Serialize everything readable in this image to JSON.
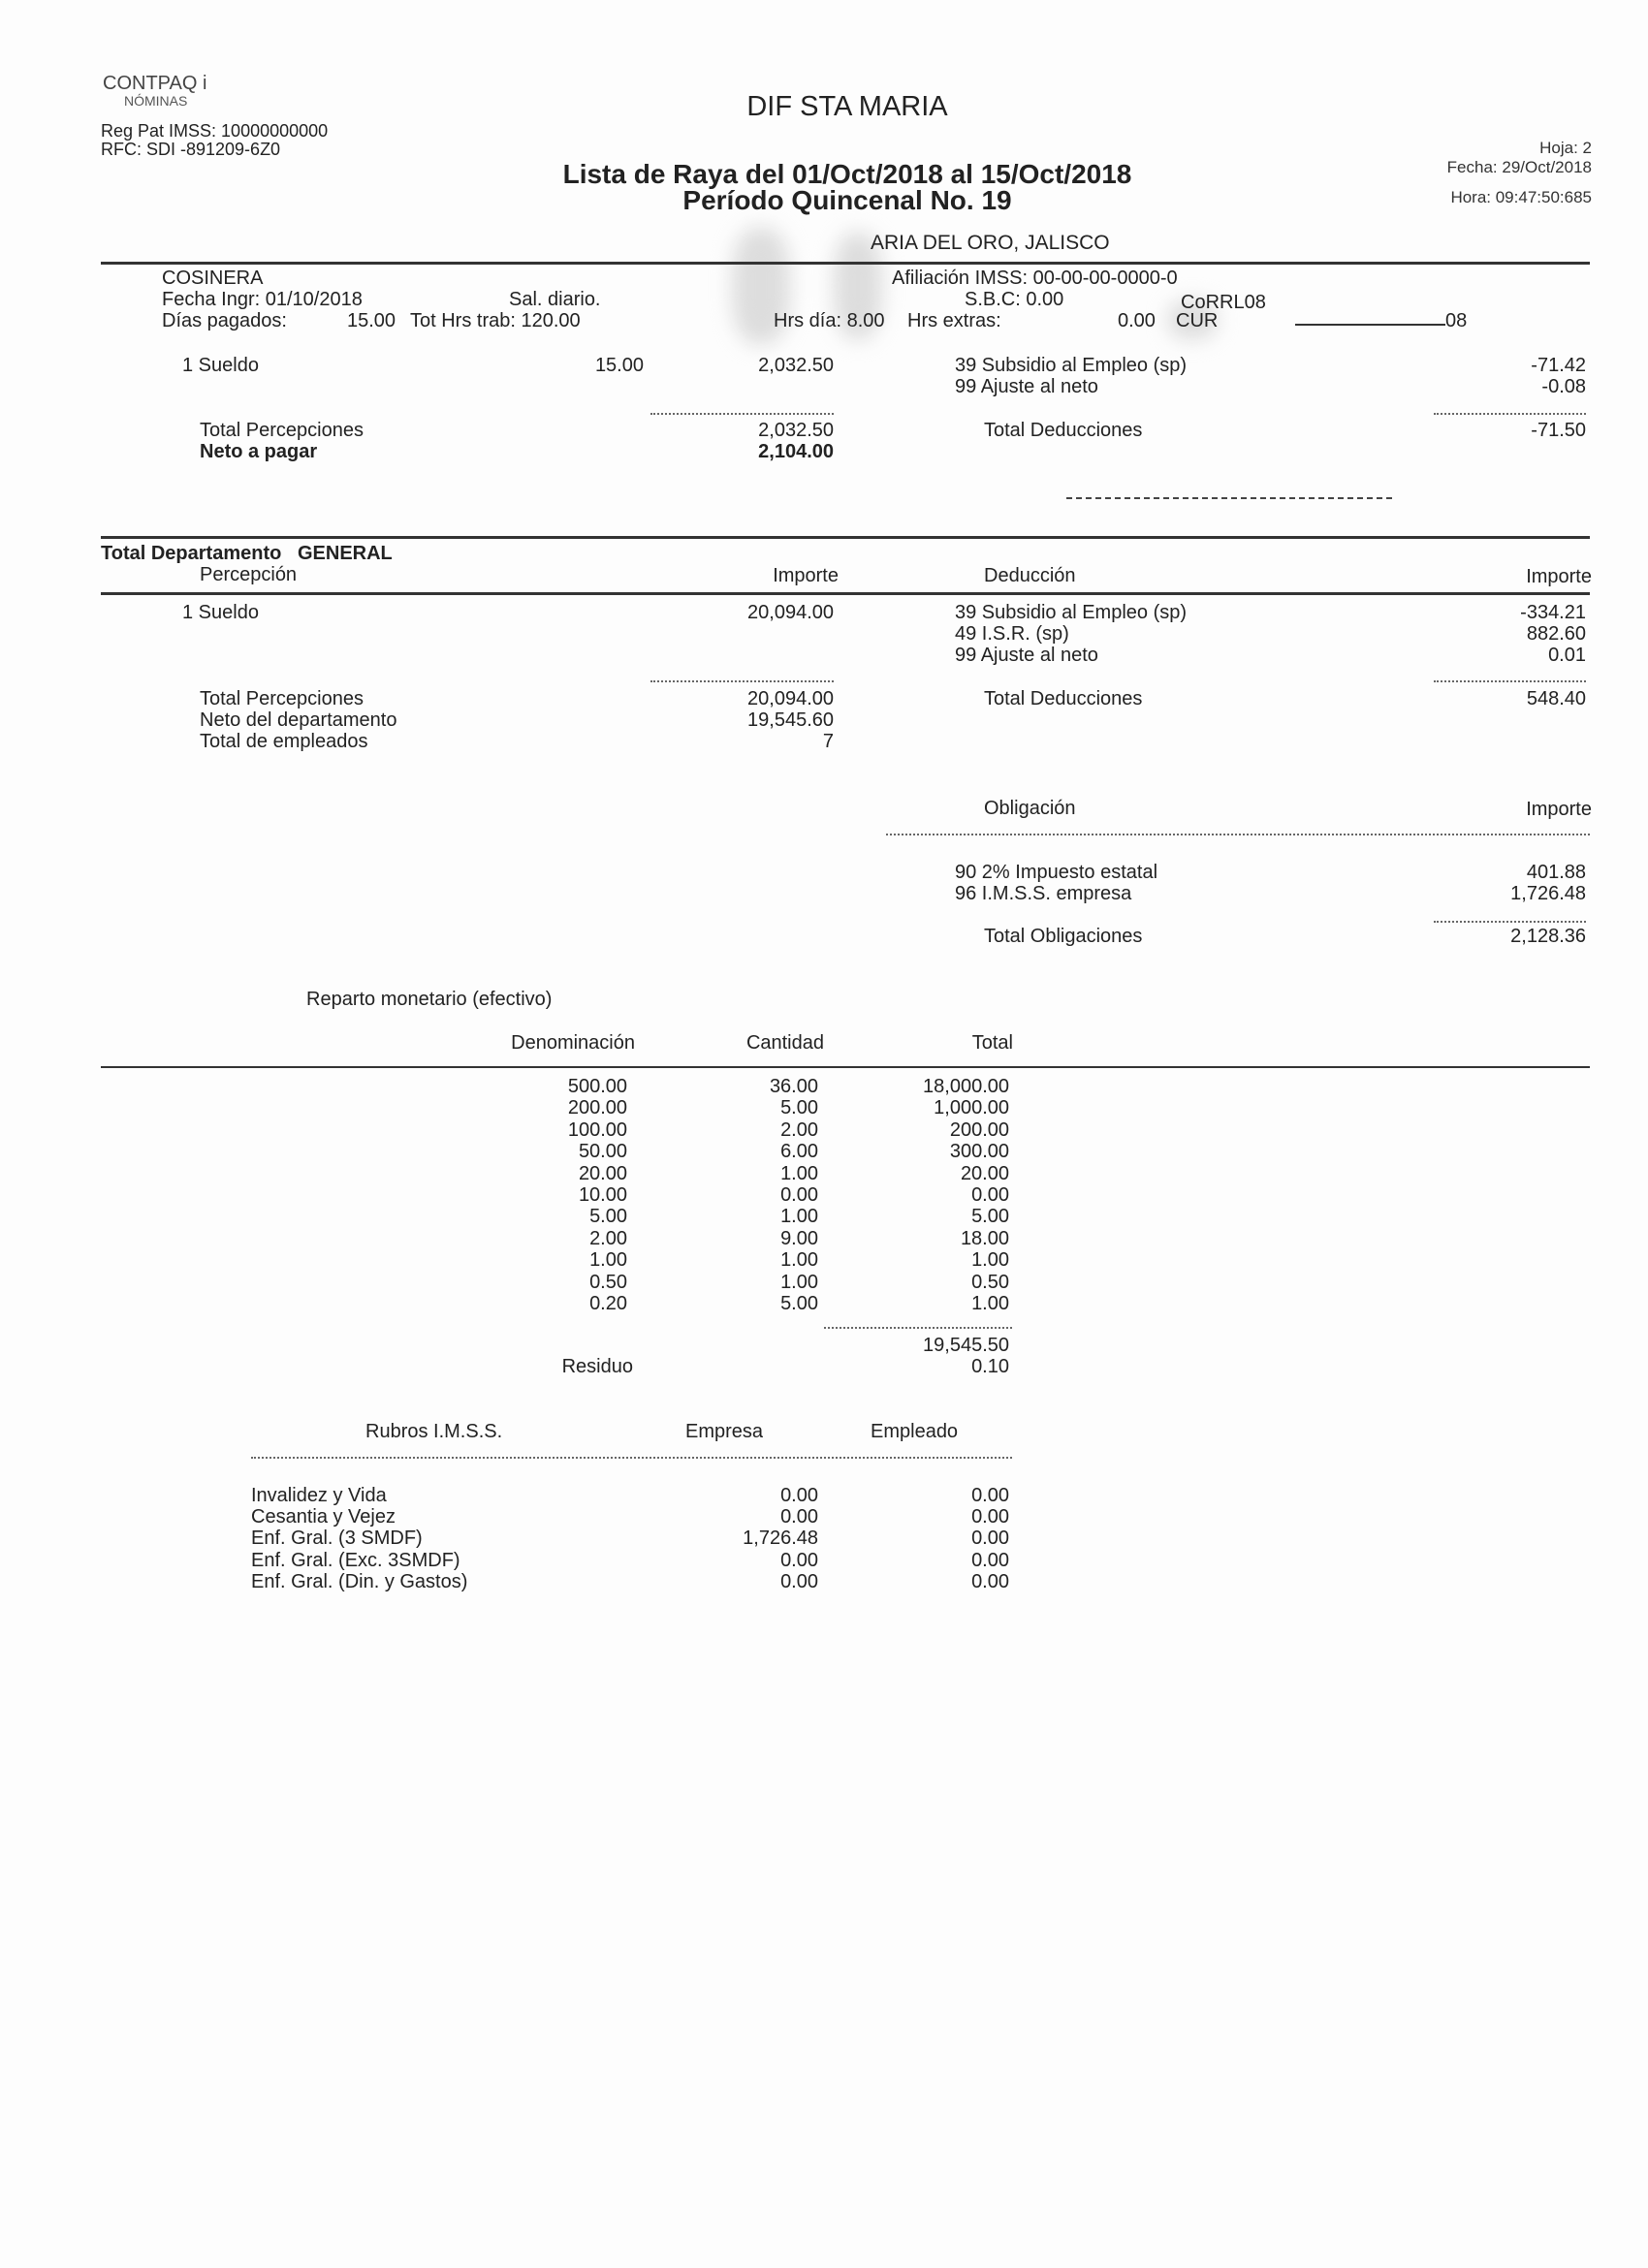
{
  "header": {
    "software": "CONTPAQ i",
    "module": "NÓMINAS",
    "reg_pat": "Reg Pat IMSS: 10000000000",
    "rfc": "RFC: SDI -891209-6Z0",
    "company": "DIF STA MARIA",
    "title": "Lista de Raya del 01/Oct/2018 al 15/Oct/2018",
    "period": "Período Quincenal No. 19",
    "hoja": "Hoja:   2",
    "fecha": "Fecha: 29/Oct/2018",
    "hora": "Hora: 09:47:50:685",
    "location": "ARIA DEL ORO, JALISCO"
  },
  "employee": {
    "puesto": "COSINERA",
    "afiliacion": "Afiliación IMSS: 00-00-00-0000-0",
    "fecha_ingr": "Fecha Ingr: 01/10/2018",
    "sal_diario": "Sal. diario.",
    "sbc": "S.B.C: 0.00",
    "curp_fragment": "CoRRL08",
    "dias_label": "Días pagados:",
    "dias": "15.00",
    "tot_hrs": "Tot Hrs trab: 120.00",
    "hrs_dia": "Hrs día: 8.00",
    "hrs_extras": "Hrs extras:",
    "hrs_extras_val": "0.00",
    "cur_label": "CUR",
    "cur_end": "08",
    "percepciones": [
      {
        "concepto": "1 Sueldo",
        "cantidad": "15.00",
        "importe": "2,032.50"
      }
    ],
    "deducciones": [
      {
        "concepto": "39 Subsidio al Empleo (sp)",
        "importe": "-71.42"
      },
      {
        "concepto": "99 Ajuste al neto",
        "importe": "-0.08"
      }
    ],
    "total_percepciones_label": "Total Percepciones",
    "total_percepciones": "2,032.50",
    "neto_label": "Neto a pagar",
    "neto": "2,104.00",
    "total_deducciones_label": "Total Deducciones",
    "total_deducciones": "-71.50"
  },
  "departamento": {
    "title": "Total Departamento   GENERAL",
    "col_percepcion": "Percepción",
    "col_importe": "Importe",
    "col_deduccion": "Deducción",
    "col_importe2": "Importe",
    "percepciones": [
      {
        "concepto": "1 Sueldo",
        "importe": "20,094.00"
      }
    ],
    "deducciones": [
      {
        "concepto": "39 Subsidio al Empleo (sp)",
        "importe": "-334.21"
      },
      {
        "concepto": "49 I.S.R. (sp)",
        "importe": "882.60"
      },
      {
        "concepto": "99 Ajuste al neto",
        "importe": "0.01"
      }
    ],
    "total_percepciones_label": "Total Percepciones",
    "total_percepciones": "20,094.00",
    "neto_label": "Neto del departamento",
    "neto": "19,545.60",
    "empleados_label": "Total de empleados",
    "empleados": "7",
    "total_deducciones_label": "Total Deducciones",
    "total_deducciones": "548.40",
    "col_obligacion": "Obligación",
    "col_importe3": "Importe",
    "obligaciones": [
      {
        "concepto": "90 2% Impuesto estatal",
        "importe": "401.88"
      },
      {
        "concepto": "96 I.M.S.S. empresa",
        "importe": "1,726.48"
      }
    ],
    "total_obligaciones_label": "Total Obligaciones",
    "total_obligaciones": "2,128.36"
  },
  "reparto": {
    "title": "Reparto monetario (efectivo)",
    "col_denominacion": "Denominación",
    "col_cantidad": "Cantidad",
    "col_total": "Total",
    "rows": [
      [
        "500.00",
        "36.00",
        "18,000.00"
      ],
      [
        "200.00",
        "5.00",
        "1,000.00"
      ],
      [
        "100.00",
        "2.00",
        "200.00"
      ],
      [
        "50.00",
        "6.00",
        "300.00"
      ],
      [
        "20.00",
        "1.00",
        "20.00"
      ],
      [
        "10.00",
        "0.00",
        "0.00"
      ],
      [
        "5.00",
        "1.00",
        "5.00"
      ],
      [
        "2.00",
        "9.00",
        "18.00"
      ],
      [
        "1.00",
        "1.00",
        "1.00"
      ],
      [
        "0.50",
        "1.00",
        "0.50"
      ],
      [
        "0.20",
        "5.00",
        "1.00"
      ]
    ],
    "total": "19,545.50",
    "residuo_label": "Residuo",
    "residuo": "0.10"
  },
  "imss": {
    "col_rubros": "Rubros I.M.S.S.",
    "col_empresa": "Empresa",
    "col_empleado": "Empleado",
    "rows": [
      [
        "Invalidez y Vida",
        "0.00",
        "0.00"
      ],
      [
        "Cesantia y Vejez",
        "0.00",
        "0.00"
      ],
      [
        "Enf. Gral. (3 SMDF)",
        "1,726.48",
        "0.00"
      ],
      [
        "Enf. Gral. (Exc. 3SMDF)",
        "0.00",
        "0.00"
      ],
      [
        "Enf. Gral. (Din. y Gastos)",
        "0.00",
        "0.00"
      ]
    ]
  }
}
